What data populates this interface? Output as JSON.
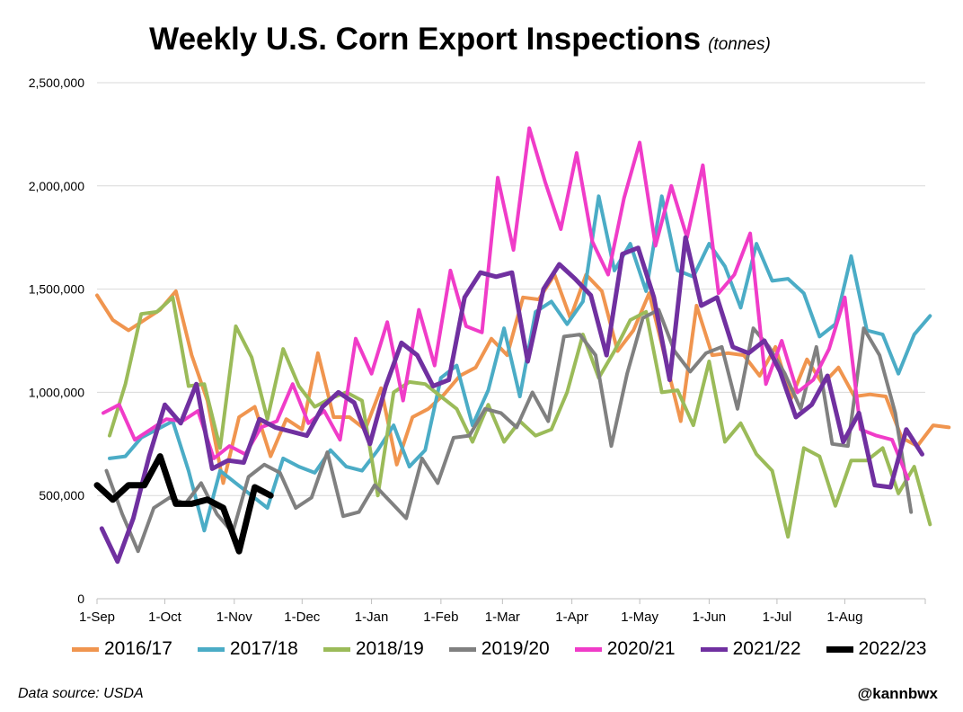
{
  "title": "Weekly U.S. Corn Export Inspections",
  "subtitle": "(tonnes)",
  "footer": {
    "source": "Data source: USDA",
    "handle": "@kannbwx"
  },
  "chart_data": {
    "type": "line",
    "title": "Weekly U.S. Corn Export Inspections",
    "ylabel": "tonnes",
    "ylim": [
      0,
      2500000
    ],
    "yticks": [
      0,
      500000,
      1000000,
      1500000,
      2000000,
      2500000
    ],
    "ytick_labels": [
      "0",
      "500,000",
      "1,000,000",
      "1,500,000",
      "2,000,000",
      "2,500,000"
    ],
    "xlim": [
      0,
      52.5
    ],
    "xticks": [
      0,
      4.3,
      8.7,
      13,
      17.4,
      21.8,
      25.7,
      30.1,
      34.4,
      38.8,
      43.1,
      47.4
    ],
    "xtick_labels": [
      "1-Sep",
      "1-Oct",
      "1-Nov",
      "1-Dec",
      "1-Jan",
      "1-Feb",
      "1-Mar",
      "1-Apr",
      "1-May",
      "1-Jun",
      "1-Jul",
      "1-Aug"
    ],
    "grid": true,
    "legend_position": "bottom",
    "series": [
      {
        "name": "2016/17",
        "color": "#F0954F",
        "width": 4,
        "start": 0,
        "values": [
          1470000,
          1350000,
          1300000,
          1350000,
          1400000,
          1490000,
          1180000,
          960000,
          560000,
          880000,
          930000,
          690000,
          870000,
          820000,
          1190000,
          880000,
          880000,
          820000,
          1020000,
          650000,
          880000,
          920000,
          990000,
          1080000,
          1120000,
          1260000,
          1180000,
          1460000,
          1450000,
          1570000,
          1360000,
          1570000,
          1490000,
          1200000,
          1300000,
          1480000,
          1170000,
          860000,
          1420000,
          1180000,
          1190000,
          1180000,
          1080000,
          1220000,
          970000,
          1160000,
          1040000,
          1120000,
          980000,
          990000,
          980000,
          780000,
          740000,
          840000,
          830000
        ]
      },
      {
        "name": "2017/18",
        "color": "#4BACC6",
        "width": 4,
        "start": 0.8,
        "values": [
          680000,
          690000,
          780000,
          820000,
          860000,
          620000,
          330000,
          620000,
          560000,
          500000,
          440000,
          680000,
          640000,
          610000,
          720000,
          640000,
          620000,
          720000,
          840000,
          640000,
          720000,
          1070000,
          1130000,
          840000,
          1010000,
          1310000,
          980000,
          1390000,
          1440000,
          1330000,
          1440000,
          1950000,
          1590000,
          1720000,
          1490000,
          1950000,
          1590000,
          1560000,
          1720000,
          1610000,
          1410000,
          1720000,
          1540000,
          1550000,
          1480000,
          1270000,
          1330000,
          1660000,
          1300000,
          1280000,
          1090000,
          1280000,
          1370000
        ]
      },
      {
        "name": "2018/19",
        "color": "#9BBB59",
        "width": 4,
        "start": 0.8,
        "values": [
          790000,
          1040000,
          1380000,
          1390000,
          1460000,
          1030000,
          1040000,
          730000,
          1320000,
          1170000,
          870000,
          1210000,
          1030000,
          930000,
          970000,
          1000000,
          960000,
          500000,
          1000000,
          1050000,
          1040000,
          980000,
          920000,
          760000,
          940000,
          760000,
          860000,
          790000,
          820000,
          1000000,
          1280000,
          1070000,
          1200000,
          1350000,
          1390000,
          1000000,
          1010000,
          840000,
          1150000,
          760000,
          850000,
          700000,
          620000,
          300000,
          730000,
          690000,
          450000,
          670000,
          670000,
          730000,
          510000,
          640000,
          360000
        ]
      },
      {
        "name": "2019/20",
        "color": "#808080",
        "width": 4,
        "start": 0.6,
        "values": [
          620000,
          410000,
          230000,
          440000,
          490000,
          460000,
          560000,
          410000,
          320000,
          590000,
          650000,
          610000,
          440000,
          490000,
          710000,
          400000,
          420000,
          550000,
          470000,
          390000,
          680000,
          560000,
          780000,
          790000,
          920000,
          900000,
          830000,
          1000000,
          860000,
          1270000,
          1280000,
          1180000,
          740000,
          1090000,
          1360000,
          1400000,
          1200000,
          1100000,
          1190000,
          1220000,
          920000,
          1310000,
          1220000,
          1090000,
          920000,
          1220000,
          750000,
          740000,
          1310000,
          1180000,
          900000,
          420000
        ]
      },
      {
        "name": "2020/21",
        "color": "#F03CC8",
        "width": 4,
        "start": 0.4,
        "values": [
          900000,
          940000,
          770000,
          820000,
          870000,
          860000,
          910000,
          680000,
          740000,
          700000,
          830000,
          860000,
          1040000,
          850000,
          910000,
          770000,
          1260000,
          1090000,
          1340000,
          960000,
          1400000,
          1130000,
          1590000,
          1320000,
          1290000,
          2040000,
          1690000,
          2280000,
          2020000,
          1790000,
          2160000,
          1730000,
          1570000,
          1940000,
          2210000,
          1710000,
          2000000,
          1750000,
          2100000,
          1480000,
          1570000,
          1770000,
          1040000,
          1250000,
          1000000,
          1060000,
          1210000,
          1460000,
          820000,
          790000,
          770000,
          580000
        ]
      },
      {
        "name": "2021/22",
        "color": "#7030A0",
        "width": 5,
        "start": 0.3,
        "values": [
          340000,
          180000,
          390000,
          690000,
          940000,
          850000,
          1040000,
          630000,
          670000,
          660000,
          870000,
          830000,
          810000,
          790000,
          930000,
          1000000,
          950000,
          750000,
          1030000,
          1240000,
          1180000,
          1030000,
          1060000,
          1460000,
          1580000,
          1560000,
          1580000,
          1150000,
          1500000,
          1620000,
          1550000,
          1470000,
          1180000,
          1670000,
          1700000,
          1460000,
          1060000,
          1750000,
          1420000,
          1460000,
          1220000,
          1190000,
          1250000,
          1100000,
          880000,
          940000,
          1080000,
          760000,
          900000,
          550000,
          540000,
          820000,
          700000
        ]
      },
      {
        "name": "2022/23",
        "color": "#000000",
        "width": 7,
        "start": 0,
        "values": [
          550000,
          480000,
          550000,
          550000,
          690000,
          460000,
          460000,
          480000,
          440000,
          230000,
          540000,
          500000
        ]
      }
    ]
  }
}
